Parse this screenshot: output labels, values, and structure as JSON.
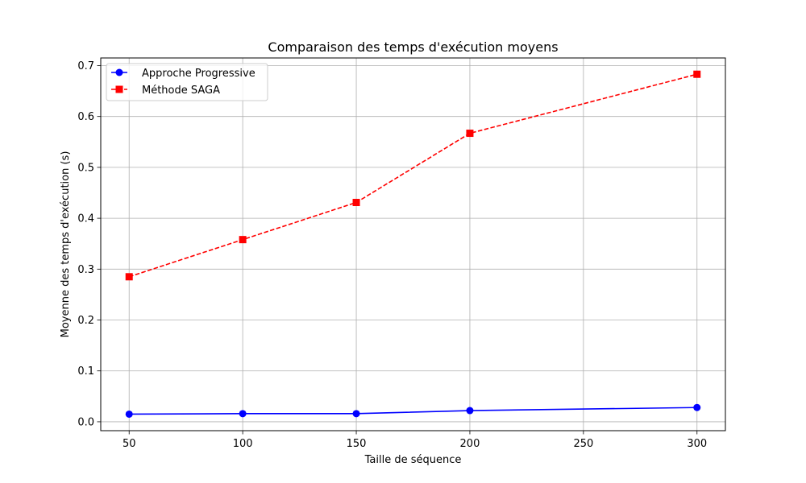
{
  "chart_data": {
    "type": "line",
    "title": "Comparaison des temps d'exécution moyens",
    "xlabel": "Taille de séquence",
    "ylabel": "Moyenne des temps d'exécution (s)",
    "xlim": [
      37.5,
      312.5
    ],
    "ylim": [
      -0.0175,
      0.715
    ],
    "xticks": [
      50,
      100,
      150,
      200,
      250,
      300
    ],
    "yticks": [
      0.0,
      0.1,
      0.2,
      0.3,
      0.4,
      0.5,
      0.6,
      0.7
    ],
    "xtick_labels": [
      "50",
      "100",
      "150",
      "200",
      "250",
      "300"
    ],
    "ytick_labels": [
      "0.0",
      "0.1",
      "0.2",
      "0.3",
      "0.4",
      "0.5",
      "0.6",
      "0.7"
    ],
    "grid": true,
    "legend_position": "top-left",
    "x": [
      50,
      100,
      150,
      200,
      300
    ],
    "series": [
      {
        "name": "Approche Progressive",
        "values": [
          0.015,
          0.016,
          0.016,
          0.022,
          0.028
        ],
        "color": "#0000ff",
        "marker": "circle",
        "line_style": "solid"
      },
      {
        "name": "Méthode SAGA",
        "values": [
          0.285,
          0.358,
          0.431,
          0.567,
          0.683
        ],
        "color": "#ff0000",
        "marker": "square",
        "line_style": "dashed"
      }
    ]
  }
}
